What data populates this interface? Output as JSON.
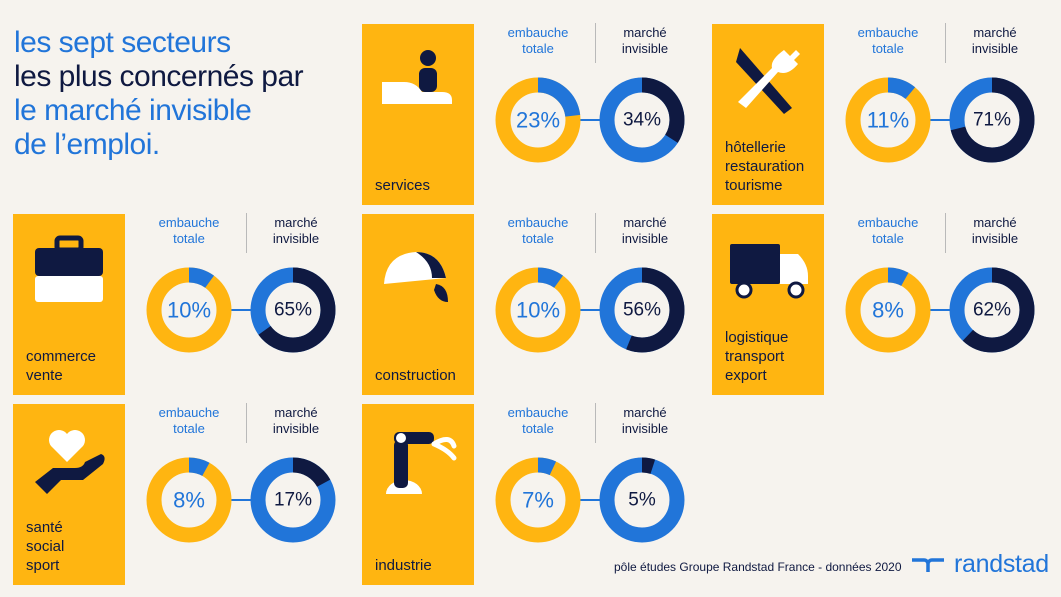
{
  "title": {
    "line1": "les sept secteurs",
    "line2": "les plus concernés par",
    "line3": "le marché invisible",
    "line4": "de l’emploi."
  },
  "colors": {
    "yellow": "#ffb511",
    "blue": "#2175d9",
    "navy": "#0f1941",
    "background": "#f6f3ee"
  },
  "chart_data": {
    "type": "donut",
    "series": [
      {
        "name": "embauche totale",
        "color": "#2175d9"
      },
      {
        "name": "marché invisible",
        "color": "#0f1941"
      }
    ],
    "sectors": [
      {
        "icon": "hand-person-icon",
        "label_lines": [
          "services"
        ],
        "embauche_totale": 23,
        "marche_invisible": 34
      },
      {
        "icon": "knife-fork-icon",
        "label_lines": [
          "hôtellerie",
          "restauration",
          "tourisme"
        ],
        "embauche_totale": 11,
        "marche_invisible": 71
      },
      {
        "icon": "briefcase-icon",
        "label_lines": [
          "commerce",
          "vente"
        ],
        "embauche_totale": 10,
        "marche_invisible": 65
      },
      {
        "icon": "hard-hat-icon",
        "label_lines": [
          "construction"
        ],
        "embauche_totale": 10,
        "marche_invisible": 56
      },
      {
        "icon": "truck-icon",
        "label_lines": [
          "logistique",
          "transport",
          "export"
        ],
        "embauche_totale": 8,
        "marche_invisible": 62
      },
      {
        "icon": "hand-heart-icon",
        "label_lines": [
          "santé",
          "social",
          "sport"
        ],
        "embauche_totale": 8,
        "marche_invisible": 17
      },
      {
        "icon": "robot-arm-icon",
        "label_lines": [
          "industrie"
        ],
        "embauche_totale": 7,
        "marche_invisible": 5
      }
    ]
  },
  "headers": {
    "embauche": [
      "embauche",
      "totale"
    ],
    "marche": [
      "marché",
      "invisible"
    ]
  },
  "footer": "pôle études Groupe Randstad France - données 2020",
  "brand": "randstad"
}
